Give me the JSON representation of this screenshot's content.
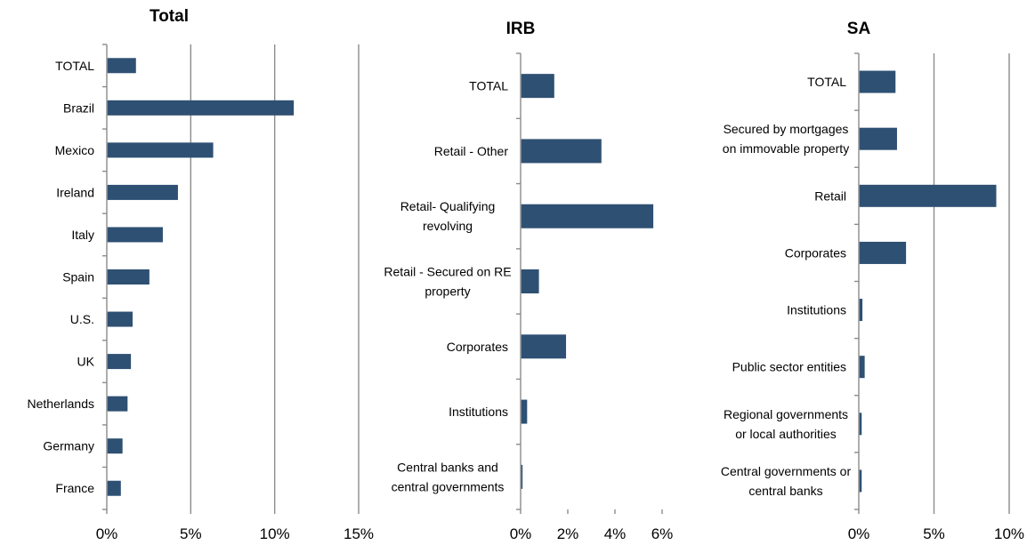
{
  "chart_data": [
    {
      "type": "bar",
      "orientation": "horizontal",
      "title": "Total",
      "categories": [
        "TOTAL",
        "Brazil",
        "Mexico",
        "Ireland",
        "Italy",
        "Spain",
        "U.S.",
        "UK",
        "Netherlands",
        "Germany",
        "France"
      ],
      "values": [
        1.7,
        11.1,
        6.3,
        4.2,
        3.3,
        2.5,
        1.5,
        1.4,
        1.2,
        0.9,
        0.8
      ],
      "xlim": [
        0,
        15
      ],
      "xticks": [
        0,
        5,
        10,
        15
      ],
      "tick_labels": [
        "0%",
        "5%",
        "10%",
        "15%"
      ],
      "grid": true,
      "bar_color": "#2e5073"
    },
    {
      "type": "bar",
      "orientation": "horizontal",
      "title": "IRB",
      "categories": [
        "TOTAL",
        "Retail - Other",
        "Retail- Qualifying revolving",
        "Retail - Secured on RE property",
        "Corporates",
        "Institutions",
        "Central banks and central governments"
      ],
      "values": [
        1.4,
        3.4,
        5.6,
        0.75,
        1.9,
        0.25,
        0.05
      ],
      "xlim": [
        0,
        6
      ],
      "xticks": [
        0,
        2,
        4,
        6
      ],
      "tick_labels": [
        "0%",
        "2%",
        "4%",
        "6%"
      ],
      "grid": false,
      "bar_color": "#2e5073"
    },
    {
      "type": "bar",
      "orientation": "horizontal",
      "title": "SA",
      "categories": [
        "TOTAL",
        "Secured by mortgages on immovable property",
        "Retail",
        "Corporates",
        "Institutions",
        "Public sector entities",
        "Regional governments or local authorities",
        "Central governments or central banks"
      ],
      "values": [
        2.4,
        2.5,
        9.1,
        3.1,
        0.2,
        0.35,
        0.15,
        0.15
      ],
      "xlim": [
        0,
        10
      ],
      "xticks": [
        0,
        5,
        10
      ],
      "tick_labels": [
        "0%",
        "5%",
        "10%"
      ],
      "grid": true,
      "bar_color": "#2e5073"
    }
  ]
}
